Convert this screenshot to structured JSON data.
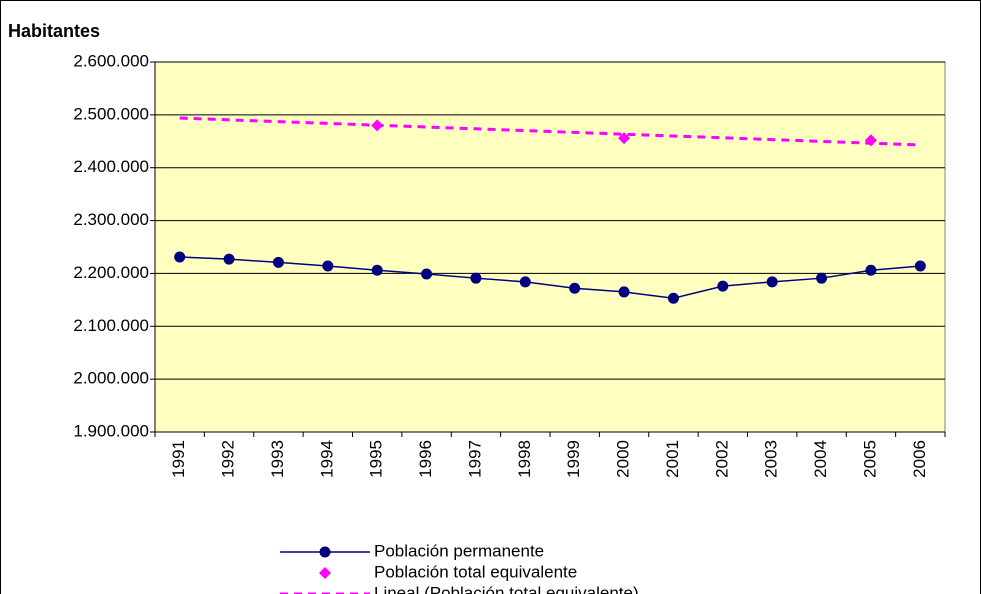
{
  "chart_data": {
    "type": "line",
    "y_axis_label": "Habitantes",
    "categories": [
      "1991",
      "1992",
      "1993",
      "1994",
      "1995",
      "1996",
      "1997",
      "1998",
      "1999",
      "2000",
      "2001",
      "2002",
      "2003",
      "2004",
      "2005",
      "2006"
    ],
    "series": [
      {
        "name": "Población permanente",
        "color": "#000080",
        "style": "line-markers",
        "values": [
          2231000,
          2227000,
          2221000,
          2214000,
          2206000,
          2199000,
          2191000,
          2184000,
          2172000,
          2165000,
          2153000,
          2176000,
          2184000,
          2191000,
          2206000,
          2214000
        ]
      },
      {
        "name": "Población total equivalente",
        "color": "#ff00ff",
        "style": "markers",
        "values": [
          null,
          null,
          null,
          null,
          2480000,
          null,
          null,
          null,
          null,
          2456000,
          null,
          null,
          null,
          null,
          2452000,
          null
        ]
      },
      {
        "name": "Lineal (Población total equivalente)",
        "color": "#ff00ff",
        "style": "dashed",
        "values": [
          2494000,
          2490600,
          2487200,
          2483800,
          2480400,
          2477000,
          2473600,
          2470200,
          2466800,
          2463400,
          2460000,
          2456600,
          2453200,
          2449800,
          2446400,
          2443000
        ]
      }
    ],
    "ylim": [
      1900000,
      2600000
    ],
    "yticks": [
      {
        "value": 1900000,
        "label": "1.900.000"
      },
      {
        "value": 2000000,
        "label": "2.000.000"
      },
      {
        "value": 2100000,
        "label": "2.100.000"
      },
      {
        "value": 2200000,
        "label": "2.200.000"
      },
      {
        "value": 2300000,
        "label": "2.300.000"
      },
      {
        "value": 2400000,
        "label": "2.400.000"
      },
      {
        "value": 2500000,
        "label": "2.500.000"
      },
      {
        "value": 2600000,
        "label": "2.600.000"
      }
    ],
    "grid": true,
    "plot_background": "#ffffc0"
  }
}
